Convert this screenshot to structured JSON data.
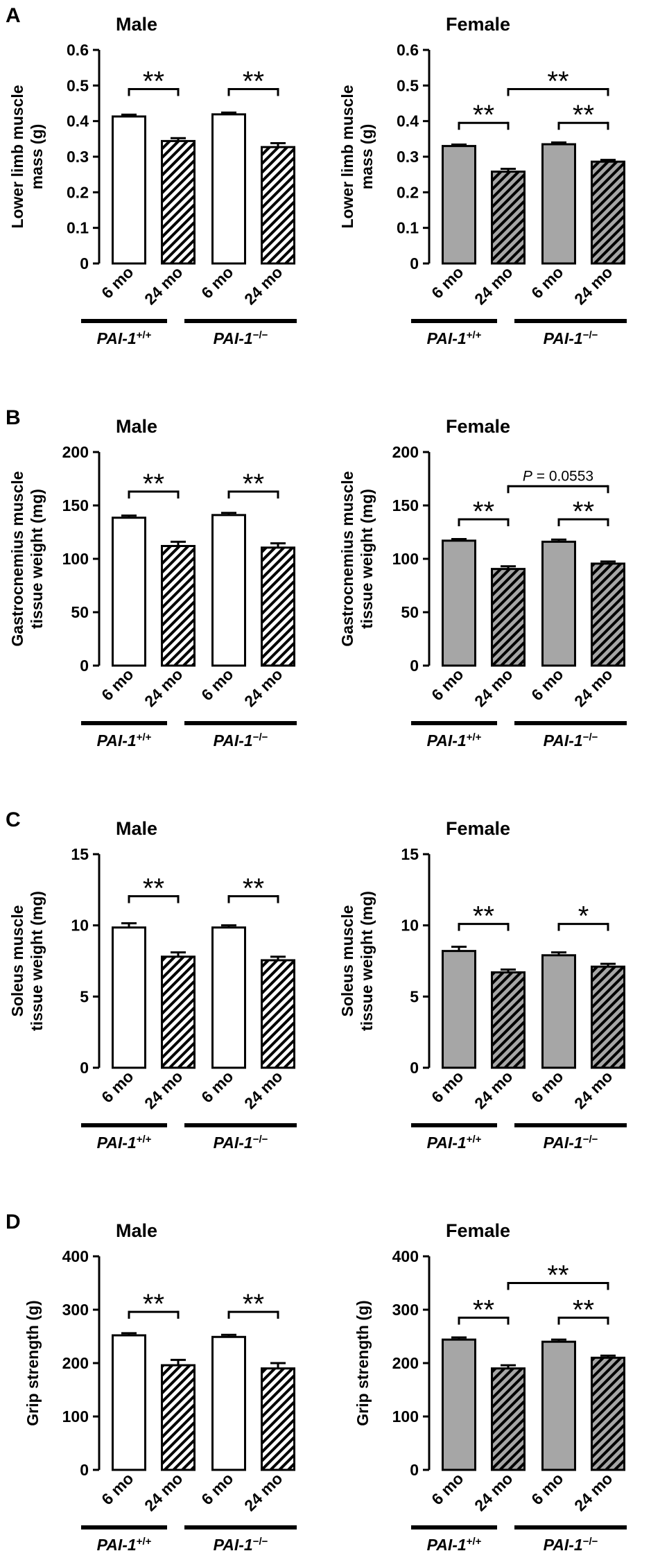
{
  "chart_data": [
    {
      "type": "bar",
      "panel_letter": "A",
      "title": "Male",
      "ylabel": [
        "Lower limb muscle",
        "mass (g)"
      ],
      "ylim": [
        0,
        0.6
      ],
      "yticks": [
        "0",
        "0.1",
        "0.2",
        "0.3",
        "0.4",
        "0.5",
        "0.6"
      ],
      "categories": [
        "6 mo",
        "24 mo",
        "6 mo",
        "24 mo"
      ],
      "values": [
        0.413,
        0.344,
        0.419,
        0.327
      ],
      "errors": [
        0.005,
        0.008,
        0.005,
        0.011
      ],
      "fill": "white",
      "groups": [
        {
          "label": "PAI-1",
          "sup": "+/+"
        },
        {
          "label": "PAI-1",
          "sup": "−/−"
        }
      ],
      "significance": [
        {
          "from": 0,
          "to": 1,
          "label": "**",
          "level": 0.49
        },
        {
          "from": 2,
          "to": 3,
          "label": "**",
          "level": 0.49
        }
      ]
    },
    {
      "type": "bar",
      "panel_letter": "",
      "title": "Female",
      "ylabel": [
        "Lower limb muscle",
        "mass (g)"
      ],
      "ylim": [
        0,
        0.6
      ],
      "yticks": [
        "0",
        "0.1",
        "0.2",
        "0.3",
        "0.4",
        "0.5",
        "0.6"
      ],
      "categories": [
        "6 mo",
        "24 mo",
        "6 mo",
        "24 mo"
      ],
      "values": [
        0.33,
        0.258,
        0.335,
        0.286
      ],
      "errors": [
        0.004,
        0.008,
        0.005,
        0.005
      ],
      "fill": "gray",
      "groups": [
        {
          "label": "PAI-1",
          "sup": "+/+"
        },
        {
          "label": "PAI-1",
          "sup": "−/−"
        }
      ],
      "significance": [
        {
          "from": 0,
          "to": 1,
          "label": "**",
          "level": 0.395
        },
        {
          "from": 2,
          "to": 3,
          "label": "**",
          "level": 0.395
        },
        {
          "from": 1,
          "to": 3,
          "label": "**",
          "level": 0.49
        }
      ]
    },
    {
      "type": "bar",
      "panel_letter": "B",
      "title": "Male",
      "ylabel": [
        "Gastrocnemius muscle",
        "tissue weight (mg)"
      ],
      "ylim": [
        0,
        200
      ],
      "yticks": [
        "0",
        "50",
        "100",
        "150",
        "200"
      ],
      "categories": [
        "6 mo",
        "24 mo",
        "6 mo",
        "24 mo"
      ],
      "values": [
        138.5,
        112,
        141,
        110.5
      ],
      "errors": [
        2,
        4,
        2,
        4
      ],
      "fill": "white",
      "groups": [
        {
          "label": "PAI-1",
          "sup": "+/+"
        },
        {
          "label": "PAI-1",
          "sup": "−/−"
        }
      ],
      "significance": [
        {
          "from": 0,
          "to": 1,
          "label": "**",
          "level": 163
        },
        {
          "from": 2,
          "to": 3,
          "label": "**",
          "level": 163
        }
      ]
    },
    {
      "type": "bar",
      "panel_letter": "",
      "title": "Female",
      "ylabel": [
        "Gastrocnemius muscle",
        "tissue weight (mg)"
      ],
      "ylim": [
        0,
        200
      ],
      "yticks": [
        "0",
        "50",
        "100",
        "150",
        "200"
      ],
      "categories": [
        "6 mo",
        "24 mo",
        "6 mo",
        "24 mo"
      ],
      "values": [
        117,
        90.5,
        116,
        95.5
      ],
      "errors": [
        1.5,
        2.5,
        2,
        2
      ],
      "fill": "gray",
      "groups": [
        {
          "label": "PAI-1",
          "sup": "+/+"
        },
        {
          "label": "PAI-1",
          "sup": "−/−"
        }
      ],
      "significance": [
        {
          "from": 0,
          "to": 1,
          "label": "**",
          "level": 137
        },
        {
          "from": 2,
          "to": 3,
          "label": "**",
          "level": 137
        },
        {
          "from": 1,
          "to": 3,
          "label": "P = 0.0553",
          "level": 168,
          "italic_p": true
        }
      ]
    },
    {
      "type": "bar",
      "panel_letter": "C",
      "title": "Male",
      "ylabel": [
        "Soleus muscle",
        "tissue weight (mg)"
      ],
      "ylim": [
        0,
        15
      ],
      "yticks": [
        "0",
        "5",
        "10",
        "15"
      ],
      "categories": [
        "6 mo",
        "24 mo",
        "6 mo",
        "24 mo"
      ],
      "values": [
        9.85,
        7.8,
        9.85,
        7.55
      ],
      "errors": [
        0.3,
        0.3,
        0.15,
        0.25
      ],
      "fill": "white",
      "groups": [
        {
          "label": "PAI-1",
          "sup": "+/+"
        },
        {
          "label": "PAI-1",
          "sup": "−/−"
        }
      ],
      "significance": [
        {
          "from": 0,
          "to": 1,
          "label": "**",
          "level": 12.05
        },
        {
          "from": 2,
          "to": 3,
          "label": "**",
          "level": 12.05
        }
      ]
    },
    {
      "type": "bar",
      "panel_letter": "",
      "title": "Female",
      "ylabel": [
        "Soleus muscle",
        "tissue weight (mg)"
      ],
      "ylim": [
        0,
        15
      ],
      "yticks": [
        "0",
        "5",
        "10",
        "15"
      ],
      "categories": [
        "6 mo",
        "24 mo",
        "6 mo",
        "24 mo"
      ],
      "values": [
        8.2,
        6.7,
        7.9,
        7.1
      ],
      "errors": [
        0.3,
        0.2,
        0.2,
        0.2
      ],
      "fill": "gray",
      "groups": [
        {
          "label": "PAI-1",
          "sup": "+/+"
        },
        {
          "label": "PAI-1",
          "sup": "−/−"
        }
      ],
      "significance": [
        {
          "from": 0,
          "to": 1,
          "label": "**",
          "level": 10.1
        },
        {
          "from": 2,
          "to": 3,
          "label": "*",
          "level": 10.1
        }
      ]
    },
    {
      "type": "bar",
      "panel_letter": "D",
      "title": "Male",
      "ylabel": [
        "Grip strength (g)"
      ],
      "ylim": [
        0,
        400
      ],
      "yticks": [
        "0",
        "100",
        "200",
        "300",
        "400"
      ],
      "categories": [
        "6 mo",
        "24 mo",
        "6 mo",
        "24 mo"
      ],
      "values": [
        252,
        196,
        249,
        190
      ],
      "errors": [
        4,
        10,
        4,
        10
      ],
      "fill": "white",
      "groups": [
        {
          "label": "PAI-1",
          "sup": "+/+"
        },
        {
          "label": "PAI-1",
          "sup": "−/−"
        }
      ],
      "significance": [
        {
          "from": 0,
          "to": 1,
          "label": "**",
          "level": 296
        },
        {
          "from": 2,
          "to": 3,
          "label": "**",
          "level": 296
        }
      ]
    },
    {
      "type": "bar",
      "panel_letter": "",
      "title": "Female",
      "ylabel": [
        "Grip strength (g)"
      ],
      "ylim": [
        0,
        400
      ],
      "yticks": [
        "0",
        "100",
        "200",
        "300",
        "400"
      ],
      "categories": [
        "6 mo",
        "24 mo",
        "6 mo",
        "24 mo"
      ],
      "values": [
        244,
        190,
        240,
        210
      ],
      "errors": [
        4,
        6,
        4,
        4
      ],
      "fill": "gray",
      "groups": [
        {
          "label": "PAI-1",
          "sup": "+/+"
        },
        {
          "label": "PAI-1",
          "sup": "−/−"
        }
      ],
      "significance": [
        {
          "from": 0,
          "to": 1,
          "label": "**",
          "level": 285
        },
        {
          "from": 2,
          "to": 3,
          "label": "**",
          "level": 285
        },
        {
          "from": 1,
          "to": 3,
          "label": "**",
          "level": 350
        }
      ]
    }
  ]
}
